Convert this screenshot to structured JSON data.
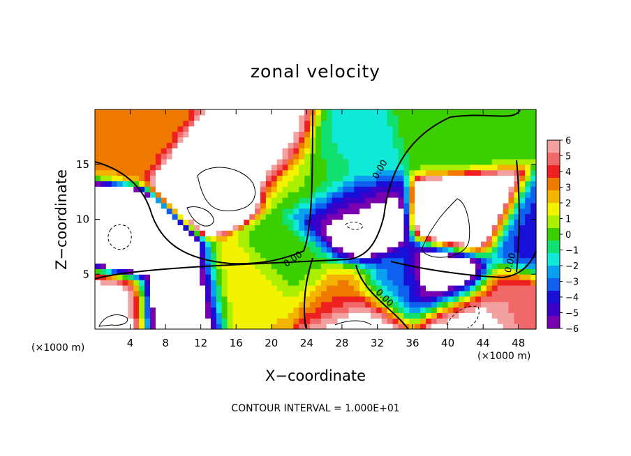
{
  "chart_data": {
    "type": "heatmap",
    "title": "zonal velocity",
    "xlabel": "X−coordinate",
    "ylabel": "Z−coordinate",
    "x_unit_label": "(×1000 m)",
    "x_ticks": [
      "4",
      "8",
      "12",
      "16",
      "20",
      "24",
      "28",
      "32",
      "36",
      "40",
      "44",
      "48"
    ],
    "y_ticks": [
      "5",
      "10",
      "15"
    ],
    "xlim": [
      0,
      50
    ],
    "ylim": [
      0,
      20
    ],
    "colorbar_ticks": [
      "6",
      "5",
      "4",
      "3",
      "2",
      "1",
      "0",
      "−1",
      "−2",
      "−3",
      "−4",
      "−5",
      "−6"
    ],
    "colorbar_range": [
      -6,
      6
    ],
    "colorbar_colors": [
      "#f2a0a0",
      "#f06868",
      "#ee2020",
      "#f07a00",
      "#f3b400",
      "#f3f300",
      "#aaee00",
      "#3ccf00",
      "#10e070",
      "#10e8d8",
      "#0aa0f0",
      "#1060f0",
      "#1810d8",
      "#3a00c8",
      "#7800b0"
    ],
    "contour_labels": [
      "0.00",
      "0.00",
      "0.00",
      "0.00"
    ],
    "contour_note": "CONTOUR INTERVAL = 1.000E+01",
    "grid": false,
    "features": [
      {
        "x": 3,
        "z": 8.2,
        "value": -9
      },
      {
        "x": 1,
        "z": 2,
        "value": 7
      },
      {
        "x": 13,
        "z": 14.5,
        "value": 9
      },
      {
        "x": 20,
        "z": 17,
        "value": 7
      },
      {
        "x": 5,
        "z": 18,
        "value": 3
      },
      {
        "x": 10,
        "z": 2.3,
        "value": -8
      },
      {
        "x": 17,
        "z": 3,
        "value": 2
      },
      {
        "x": 25,
        "z": 14,
        "value": 0.5
      },
      {
        "x": 28,
        "z": 16,
        "value": -1.5
      },
      {
        "x": 28.5,
        "z": 11,
        "value": -3.5
      },
      {
        "x": 29.5,
        "z": 9.5,
        "value": -9
      },
      {
        "x": 28,
        "z": 3,
        "value": 3
      },
      {
        "x": 30,
        "z": 0.6,
        "value": 8
      },
      {
        "x": 42,
        "z": 10.2,
        "value": 9
      },
      {
        "x": 41,
        "z": 18,
        "value": 0
      },
      {
        "x": 40,
        "z": 4.3,
        "value": -9
      },
      {
        "x": 42,
        "z": 1.2,
        "value": 8
      },
      {
        "x": 47,
        "z": 2.5,
        "value": 5
      },
      {
        "x": 49.5,
        "z": 8,
        "value": -4
      },
      {
        "x": 34,
        "z": 4,
        "value": -3
      },
      {
        "x": 23,
        "z": 6,
        "value": 0
      }
    ]
  }
}
